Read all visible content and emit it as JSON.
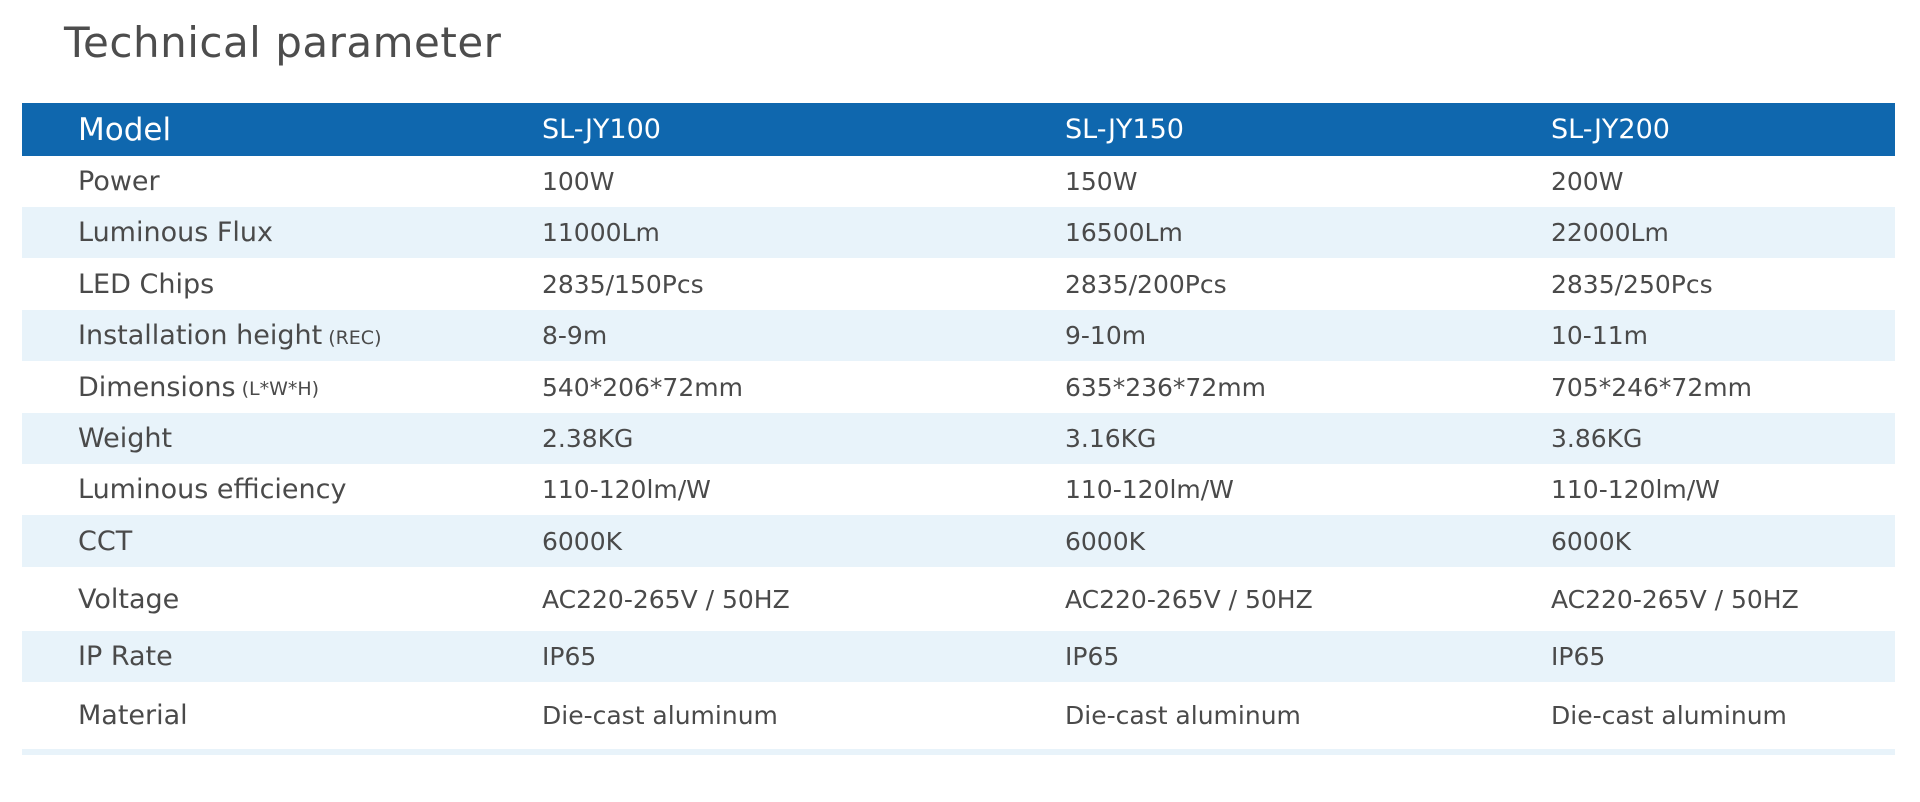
{
  "title": "Technical parameter",
  "table": {
    "header": [
      "Model",
      "SL-JY100",
      "SL-JY150",
      "SL-JY200"
    ],
    "rows": [
      {
        "label": "Power",
        "cells": [
          "100W",
          "150W",
          "200W"
        ]
      },
      {
        "label": "Luminous Flux",
        "cells": [
          "11000Lm",
          "16500Lm",
          "22000Lm"
        ]
      },
      {
        "label": "LED Chips",
        "cells": [
          "2835/150Pcs",
          "2835/200Pcs",
          "2835/250Pcs"
        ]
      },
      {
        "label": "Installation height",
        "note": "(REC)",
        "cells": [
          "8-9m",
          "9-10m",
          "10-11m"
        ]
      },
      {
        "label": "Dimensions",
        "note": "(L*W*H)",
        "cells": [
          "540*206*72mm",
          "635*236*72mm",
          "705*246*72mm"
        ]
      },
      {
        "label": "Weight",
        "cells": [
          "2.38KG",
          "3.16KG",
          "3.86KG"
        ]
      },
      {
        "label": "Luminous efficiency",
        "cells": [
          "110-120lm/W",
          "110-120lm/W",
          "110-120lm/W"
        ]
      },
      {
        "label": "CCT",
        "cells": [
          "6000K",
          "6000K",
          "6000K"
        ]
      },
      {
        "label": "Voltage",
        "cells": [
          "AC220-265V / 50HZ",
          "AC220-265V / 50HZ",
          "AC220-265V / 50HZ"
        ]
      },
      {
        "label": "IP Rate",
        "cells": [
          "IP65",
          "IP65",
          "IP65"
        ]
      },
      {
        "label": "Material",
        "cells": [
          "Die-cast aluminum",
          "Die-cast aluminum",
          "Die-cast aluminum"
        ]
      }
    ]
  }
}
